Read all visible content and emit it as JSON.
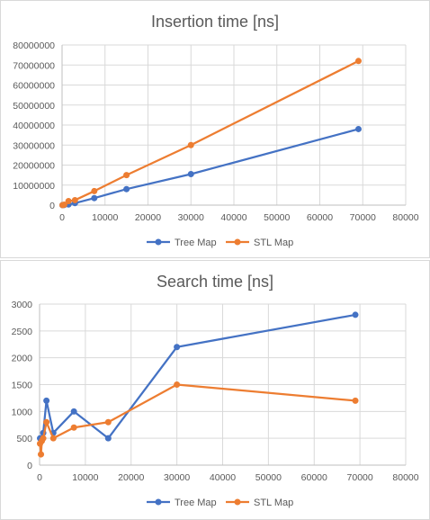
{
  "chart_data": [
    {
      "type": "line",
      "title": "Insertion time [ns]",
      "xlabel": "",
      "ylabel": "",
      "xlim": [
        0,
        80000
      ],
      "ylim": [
        0,
        80000000
      ],
      "x_ticks": [
        0,
        10000,
        20000,
        30000,
        40000,
        50000,
        60000,
        70000,
        80000
      ],
      "y_ticks": [
        0,
        10000000,
        20000000,
        30000000,
        40000000,
        50000000,
        60000000,
        70000000,
        80000000
      ],
      "grid": true,
      "legend_position": "bottom",
      "series": [
        {
          "name": "Tree Map",
          "color": "#4472c4",
          "points": [
            [
              100,
              10000
            ],
            [
              500,
              80000
            ],
            [
              1500,
              350000
            ],
            [
              3000,
              1000000
            ],
            [
              7500,
              3500000
            ],
            [
              15000,
              8000000
            ],
            [
              30000,
              15500000
            ],
            [
              69000,
              38000000
            ]
          ]
        },
        {
          "name": "STL Map",
          "color": "#ed7d31",
          "points": [
            [
              100,
              20000
            ],
            [
              500,
              200000
            ],
            [
              1500,
              2000000
            ],
            [
              3000,
              2500000
            ],
            [
              7500,
              7000000
            ],
            [
              15000,
              15000000
            ],
            [
              30000,
              30000000
            ],
            [
              69000,
              72000000
            ]
          ]
        }
      ]
    },
    {
      "type": "line",
      "title": "Search time [ns]",
      "xlabel": "",
      "ylabel": "",
      "xlim": [
        0,
        80000
      ],
      "ylim": [
        0,
        3000
      ],
      "x_ticks": [
        0,
        10000,
        20000,
        30000,
        40000,
        50000,
        60000,
        70000,
        80000
      ],
      "y_ticks": [
        0,
        500,
        1000,
        1500,
        2000,
        2500,
        3000
      ],
      "grid": true,
      "legend_position": "bottom",
      "series": [
        {
          "name": "Tree Map",
          "color": "#4472c4",
          "points": [
            [
              100,
              500
            ],
            [
              500,
              500
            ],
            [
              800,
              600
            ],
            [
              1500,
              1200
            ],
            [
              3000,
              600
            ],
            [
              7500,
              1000
            ],
            [
              15000,
              500
            ],
            [
              30000,
              2200
            ],
            [
              69000,
              2800
            ]
          ]
        },
        {
          "name": "STL Map",
          "color": "#ed7d31",
          "points": [
            [
              100,
              400
            ],
            [
              300,
              200
            ],
            [
              500,
              450
            ],
            [
              800,
              500
            ],
            [
              1500,
              800
            ],
            [
              3000,
              500
            ],
            [
              7500,
              700
            ],
            [
              15000,
              800
            ],
            [
              30000,
              1500
            ],
            [
              69000,
              1200
            ]
          ]
        }
      ]
    }
  ]
}
